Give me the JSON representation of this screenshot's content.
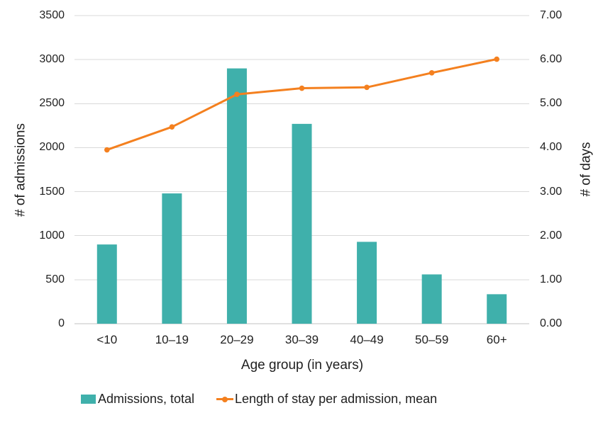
{
  "chart_data": {
    "type": "combo-bar-line",
    "categories": [
      "<10",
      "10–19",
      "20–29",
      "30–39",
      "40–49",
      "50–59",
      "60+"
    ],
    "series": [
      {
        "name": "Admissions, total",
        "type": "bar",
        "axis": "left",
        "values": [
          900,
          1480,
          2900,
          2270,
          930,
          560,
          335
        ]
      },
      {
        "name": "Length of stay per admission, mean",
        "type": "line",
        "axis": "right",
        "values": [
          3.95,
          4.47,
          5.21,
          5.35,
          5.37,
          5.7,
          6.01
        ]
      }
    ],
    "left_axis": {
      "title": "# of admissions",
      "min": 0,
      "max": 3500,
      "step": 500,
      "ticks": [
        "0",
        "500",
        "1000",
        "1500",
        "2000",
        "2500",
        "3000",
        "3500"
      ]
    },
    "right_axis": {
      "title": "# of days",
      "min": 0,
      "max": 7,
      "step": 1,
      "ticks": [
        "0.00",
        "1.00",
        "2.00",
        "3.00",
        "4.00",
        "5.00",
        "6.00",
        "7.00"
      ]
    },
    "x_axis": {
      "title": "Age group (in years)"
    },
    "legend": {
      "position": "bottom",
      "entries": [
        "Admissions, total",
        "Length of stay per admission, mean"
      ]
    },
    "grid": true,
    "colors": {
      "bar": "#3FB0AB",
      "line": "#F4801F",
      "gridline": "#D9D9D9",
      "baseline": "#C0C0C0",
      "text": "#1f1f1f",
      "background": "#FFFFFF"
    }
  }
}
